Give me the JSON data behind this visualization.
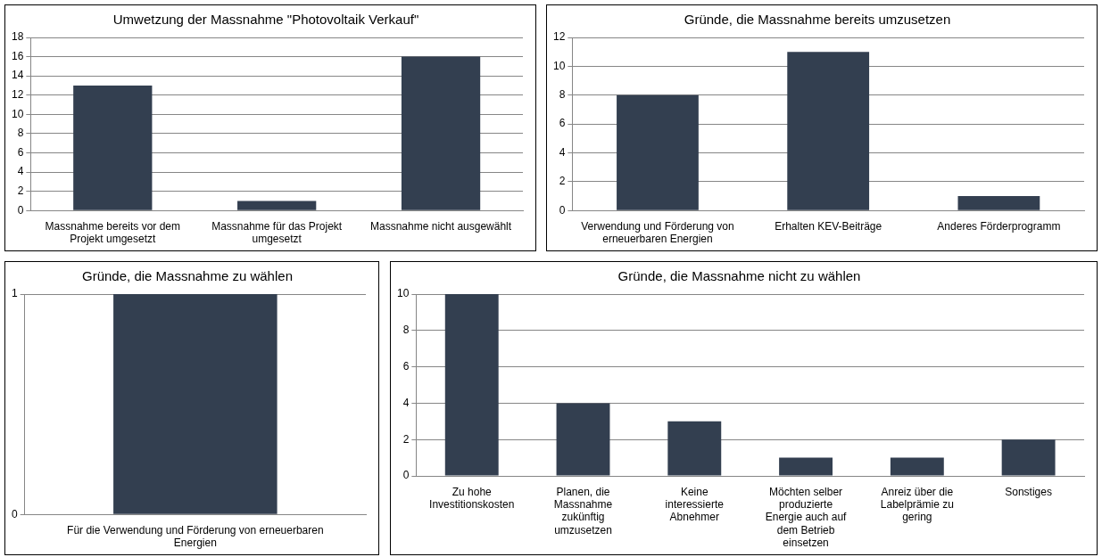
{
  "chart_data": [
    {
      "type": "bar",
      "title": "Umwetzung der Massnahme \"Photovoltaik Verkauf\"",
      "categories": [
        "Massnahme bereits vor dem Projekt umgesetzt",
        "Massnahme für das Projekt umgesetzt",
        "Massnahme nicht ausgewählt"
      ],
      "values": [
        13,
        1,
        16
      ],
      "color": "#333f50",
      "ylim": [
        0,
        18
      ],
      "yticks": [
        0,
        2,
        4,
        6,
        8,
        10,
        12,
        14,
        16,
        18
      ],
      "grid": "y"
    },
    {
      "type": "bar",
      "title": "Gründe, die Massnahme bereits umzusetzen",
      "categories": [
        "Verwendung und Förderung von erneuerbaren Energien",
        "Erhalten KEV-Beiträge",
        "Anderes Förderprogramm"
      ],
      "values": [
        8,
        11,
        1
      ],
      "color": "#333f50",
      "ylim": [
        0,
        12
      ],
      "yticks": [
        0,
        2,
        4,
        6,
        8,
        10,
        12
      ],
      "grid": "y"
    },
    {
      "type": "bar",
      "title": "Gründe, die Massnahme zu wählen",
      "categories": [
        "Für die Verwendung und Förderung von erneuerbaren Energien"
      ],
      "values": [
        1
      ],
      "color": "#333f50",
      "ylim": [
        0,
        1
      ],
      "yticks": [
        0,
        1
      ],
      "grid": "y"
    },
    {
      "type": "bar",
      "title": "Gründe, die Massnahme nicht zu wählen",
      "categories": [
        "Zu hohe Investitionskosten",
        "Planen, die Massnahme zukünftig umzusetzen",
        "Keine interessierte Abnehmer",
        "Möchten selber produzierte Energie auch auf dem Betrieb einsetzen",
        "Anreiz über die Labelprämie zu gering",
        "Sonstiges"
      ],
      "values": [
        10,
        4,
        3,
        1,
        1,
        2
      ],
      "color": "#333f50",
      "ylim": [
        0,
        10
      ],
      "yticks": [
        0,
        2,
        4,
        6,
        8,
        10
      ],
      "grid": "y"
    }
  ]
}
